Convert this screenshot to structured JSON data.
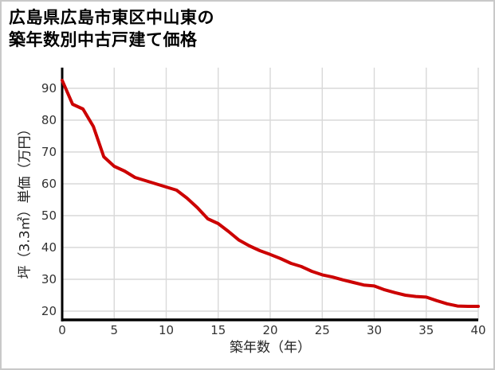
{
  "page": {
    "background": "#ffffff",
    "border_color": "#c9c9c9"
  },
  "title": {
    "line1": "広島県広島市東区中山東の",
    "line2": "築年数別中古戸建て価格"
  },
  "chart_data": {
    "type": "line",
    "title": "広島県広島市東区中山東の築年数別中古戸建て価格",
    "xlabel": "築年数（年）",
    "ylabel": "坪（3.3㎡）単価（万円）",
    "x": [
      0,
      1,
      2,
      3,
      4,
      5,
      6,
      7,
      8,
      9,
      10,
      11,
      12,
      13,
      14,
      15,
      16,
      17,
      18,
      19,
      20,
      21,
      22,
      23,
      24,
      25,
      26,
      27,
      28,
      29,
      30,
      31,
      32,
      33,
      34,
      35,
      36,
      37,
      38,
      39,
      40
    ],
    "y": [
      92.5,
      85,
      83.5,
      78,
      68.5,
      65.5,
      64,
      62,
      61,
      60,
      59,
      58,
      55.5,
      52.5,
      49,
      47.5,
      45,
      42.3,
      40.5,
      39,
      37.8,
      36.5,
      35,
      34,
      32.5,
      31.4,
      30.7,
      29.8,
      29,
      28.2,
      27.9,
      26.7,
      25.8,
      25,
      24.6,
      24.4,
      23.3,
      22.3,
      21.6,
      21.5,
      21.5
    ],
    "x_ticks": [
      0,
      5,
      10,
      15,
      20,
      25,
      30,
      35,
      40
    ],
    "y_ticks": [
      20,
      30,
      40,
      50,
      60,
      70,
      80,
      90
    ],
    "xlim": [
      0,
      40
    ],
    "ylim": [
      17.2,
      96.5
    ],
    "grid": true,
    "legend": "none",
    "line_color": "#cc0000",
    "grid_color": "#d9d9d9",
    "axis_color": "#000000",
    "tick_color": "#333333"
  }
}
